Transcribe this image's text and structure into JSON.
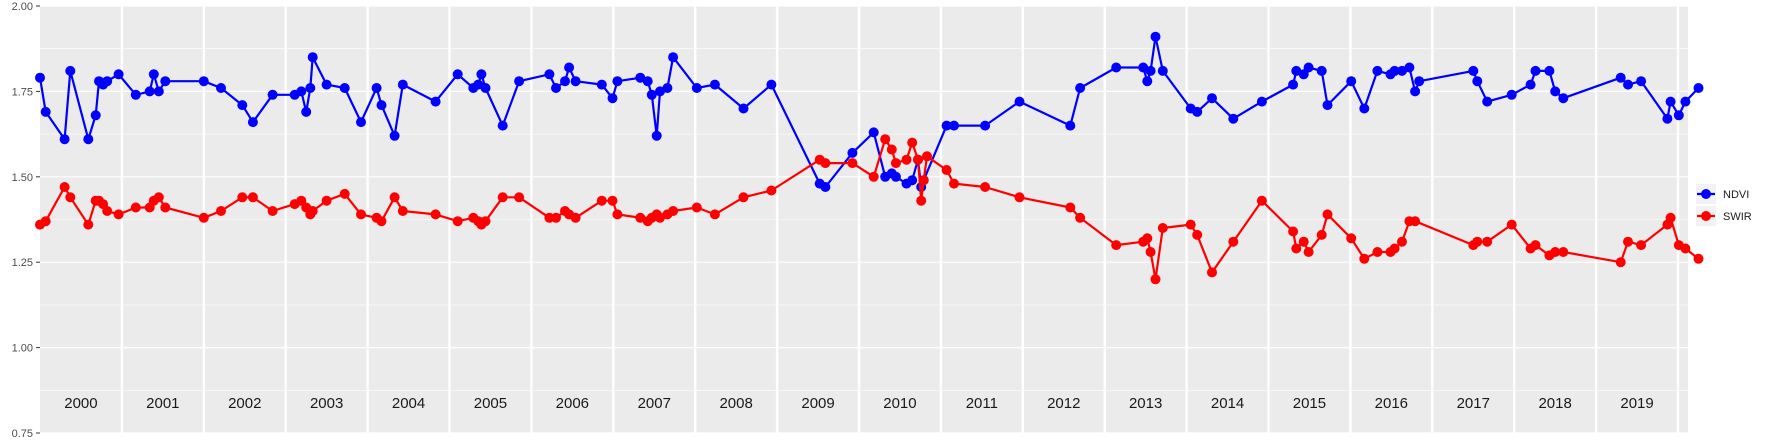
{
  "chart_data": {
    "type": "line",
    "title": "",
    "xlabel": "",
    "ylabel": "",
    "ylim": [
      0.75,
      2.0
    ],
    "y_ticks": [
      "0.75",
      "1.00",
      "1.25",
      "1.50",
      "1.75",
      "2.00"
    ],
    "x_range": [
      2000.0,
      2020.0
    ],
    "year_labels": [
      "2000",
      "2001",
      "2002",
      "2003",
      "2004",
      "2005",
      "2006",
      "2007",
      "2008",
      "2009",
      "2010",
      "2011",
      "2012",
      "2013",
      "2014",
      "2015",
      "2016",
      "2017",
      "2018",
      "2019"
    ],
    "grid": true,
    "legend": "right",
    "series": [
      {
        "name": "NDVI",
        "color": "#0000ff",
        "points": [
          [
            2000.0,
            1.79
          ],
          [
            2000.07,
            1.69
          ],
          [
            2000.3,
            1.61
          ],
          [
            2000.37,
            1.81
          ],
          [
            2000.59,
            1.61
          ],
          [
            2000.68,
            1.68
          ],
          [
            2000.72,
            1.78
          ],
          [
            2000.77,
            1.77
          ],
          [
            2000.82,
            1.78
          ],
          [
            2000.96,
            1.8
          ],
          [
            2001.17,
            1.74
          ],
          [
            2001.34,
            1.75
          ],
          [
            2001.39,
            1.8
          ],
          [
            2001.45,
            1.75
          ],
          [
            2001.53,
            1.78
          ],
          [
            2002.0,
            1.78
          ],
          [
            2002.21,
            1.76
          ],
          [
            2002.47,
            1.71
          ],
          [
            2002.6,
            1.66
          ],
          [
            2002.84,
            1.74
          ],
          [
            2003.11,
            1.74
          ],
          [
            2003.19,
            1.75
          ],
          [
            2003.25,
            1.69
          ],
          [
            2003.3,
            1.76
          ],
          [
            2003.33,
            1.85
          ],
          [
            2003.5,
            1.77
          ],
          [
            2003.72,
            1.76
          ],
          [
            2003.92,
            1.66
          ],
          [
            2004.11,
            1.76
          ],
          [
            2004.17,
            1.71
          ],
          [
            2004.33,
            1.62
          ],
          [
            2004.43,
            1.77
          ],
          [
            2004.83,
            1.72
          ],
          [
            2005.1,
            1.8
          ],
          [
            2005.29,
            1.76
          ],
          [
            2005.35,
            1.77
          ],
          [
            2005.39,
            1.8
          ],
          [
            2005.44,
            1.76
          ],
          [
            2005.65,
            1.65
          ],
          [
            2005.85,
            1.78
          ],
          [
            2006.22,
            1.8
          ],
          [
            2006.3,
            1.76
          ],
          [
            2006.41,
            1.78
          ],
          [
            2006.46,
            1.82
          ],
          [
            2006.54,
            1.78
          ],
          [
            2006.86,
            1.77
          ],
          [
            2006.99,
            1.73
          ],
          [
            2007.05,
            1.78
          ],
          [
            2007.33,
            1.79
          ],
          [
            2007.42,
            1.78
          ],
          [
            2007.47,
            1.74
          ],
          [
            2007.53,
            1.62
          ],
          [
            2007.57,
            1.75
          ],
          [
            2007.66,
            1.76
          ],
          [
            2007.73,
            1.85
          ],
          [
            2008.02,
            1.76
          ],
          [
            2008.24,
            1.77
          ],
          [
            2008.59,
            1.7
          ],
          [
            2008.93,
            1.77
          ],
          [
            2009.52,
            1.48
          ],
          [
            2009.59,
            1.47
          ],
          [
            2009.92,
            1.57
          ],
          [
            2010.18,
            1.63
          ],
          [
            2010.32,
            1.5
          ],
          [
            2010.4,
            1.51
          ],
          [
            2010.45,
            1.5
          ],
          [
            2010.58,
            1.48
          ],
          [
            2010.65,
            1.49
          ],
          [
            2010.72,
            1.55
          ],
          [
            2010.76,
            1.47
          ],
          [
            2010.79,
            1.49
          ],
          [
            2011.07,
            1.65
          ],
          [
            2011.16,
            1.65
          ],
          [
            2011.54,
            1.65
          ],
          [
            2011.96,
            1.72
          ],
          [
            2012.58,
            1.65
          ],
          [
            2012.7,
            1.76
          ],
          [
            2013.14,
            1.82
          ],
          [
            2013.47,
            1.82
          ],
          [
            2013.52,
            1.78
          ],
          [
            2013.56,
            1.81
          ],
          [
            2013.62,
            1.91
          ],
          [
            2013.71,
            1.81
          ],
          [
            2014.05,
            1.7
          ],
          [
            2014.13,
            1.69
          ],
          [
            2014.31,
            1.73
          ],
          [
            2014.57,
            1.67
          ],
          [
            2014.92,
            1.72
          ],
          [
            2015.3,
            1.77
          ],
          [
            2015.34,
            1.81
          ],
          [
            2015.43,
            1.8
          ],
          [
            2015.49,
            1.82
          ],
          [
            2015.65,
            1.81
          ],
          [
            2015.72,
            1.71
          ],
          [
            2016.01,
            1.78
          ],
          [
            2016.17,
            1.7
          ],
          [
            2016.33,
            1.81
          ],
          [
            2016.49,
            1.8
          ],
          [
            2016.54,
            1.81
          ],
          [
            2016.63,
            1.81
          ],
          [
            2016.72,
            1.82
          ],
          [
            2016.79,
            1.75
          ],
          [
            2016.84,
            1.78
          ],
          [
            2017.5,
            1.81
          ],
          [
            2017.55,
            1.78
          ],
          [
            2017.67,
            1.72
          ],
          [
            2017.97,
            1.74
          ],
          [
            2018.2,
            1.77
          ],
          [
            2018.26,
            1.81
          ],
          [
            2018.43,
            1.81
          ],
          [
            2018.5,
            1.75
          ],
          [
            2018.6,
            1.73
          ],
          [
            2019.3,
            1.79
          ],
          [
            2019.39,
            1.77
          ],
          [
            2019.55,
            1.78
          ],
          [
            2019.87,
            1.67
          ],
          [
            2019.91,
            1.72
          ],
          [
            2020.01,
            1.68
          ],
          [
            2020.09,
            1.72
          ],
          [
            2020.25,
            1.76
          ]
        ]
      },
      {
        "name": "SWIR",
        "color": "#ff0000",
        "points": [
          [
            2000.0,
            1.36
          ],
          [
            2000.07,
            1.37
          ],
          [
            2000.3,
            1.47
          ],
          [
            2000.37,
            1.44
          ],
          [
            2000.59,
            1.36
          ],
          [
            2000.68,
            1.43
          ],
          [
            2000.72,
            1.43
          ],
          [
            2000.77,
            1.42
          ],
          [
            2000.82,
            1.4
          ],
          [
            2000.96,
            1.39
          ],
          [
            2001.17,
            1.41
          ],
          [
            2001.34,
            1.41
          ],
          [
            2001.39,
            1.43
          ],
          [
            2001.45,
            1.44
          ],
          [
            2001.53,
            1.41
          ],
          [
            2002.0,
            1.38
          ],
          [
            2002.21,
            1.4
          ],
          [
            2002.47,
            1.44
          ],
          [
            2002.6,
            1.44
          ],
          [
            2002.84,
            1.4
          ],
          [
            2003.11,
            1.42
          ],
          [
            2003.19,
            1.43
          ],
          [
            2003.25,
            1.41
          ],
          [
            2003.3,
            1.39
          ],
          [
            2003.33,
            1.4
          ],
          [
            2003.5,
            1.43
          ],
          [
            2003.72,
            1.45
          ],
          [
            2003.92,
            1.39
          ],
          [
            2004.11,
            1.38
          ],
          [
            2004.17,
            1.37
          ],
          [
            2004.33,
            1.44
          ],
          [
            2004.43,
            1.4
          ],
          [
            2004.83,
            1.39
          ],
          [
            2005.1,
            1.37
          ],
          [
            2005.29,
            1.38
          ],
          [
            2005.35,
            1.37
          ],
          [
            2005.39,
            1.36
          ],
          [
            2005.44,
            1.37
          ],
          [
            2005.65,
            1.44
          ],
          [
            2005.85,
            1.44
          ],
          [
            2006.22,
            1.38
          ],
          [
            2006.3,
            1.38
          ],
          [
            2006.41,
            1.4
          ],
          [
            2006.46,
            1.39
          ],
          [
            2006.54,
            1.38
          ],
          [
            2006.86,
            1.43
          ],
          [
            2006.99,
            1.43
          ],
          [
            2007.05,
            1.39
          ],
          [
            2007.33,
            1.38
          ],
          [
            2007.42,
            1.37
          ],
          [
            2007.47,
            1.38
          ],
          [
            2007.53,
            1.39
          ],
          [
            2007.57,
            1.38
          ],
          [
            2007.66,
            1.39
          ],
          [
            2007.73,
            1.4
          ],
          [
            2008.02,
            1.41
          ],
          [
            2008.24,
            1.39
          ],
          [
            2008.59,
            1.44
          ],
          [
            2008.93,
            1.46
          ],
          [
            2009.52,
            1.55
          ],
          [
            2009.59,
            1.54
          ],
          [
            2009.92,
            1.54
          ],
          [
            2010.18,
            1.5
          ],
          [
            2010.32,
            1.61
          ],
          [
            2010.4,
            1.58
          ],
          [
            2010.45,
            1.54
          ],
          [
            2010.58,
            1.55
          ],
          [
            2010.65,
            1.6
          ],
          [
            2010.72,
            1.55
          ],
          [
            2010.76,
            1.43
          ],
          [
            2010.79,
            1.49
          ],
          [
            2010.83,
            1.56
          ],
          [
            2011.07,
            1.52
          ],
          [
            2011.16,
            1.48
          ],
          [
            2011.54,
            1.47
          ],
          [
            2011.96,
            1.44
          ],
          [
            2012.58,
            1.41
          ],
          [
            2012.7,
            1.38
          ],
          [
            2013.14,
            1.3
          ],
          [
            2013.47,
            1.31
          ],
          [
            2013.52,
            1.32
          ],
          [
            2013.56,
            1.28
          ],
          [
            2013.62,
            1.2
          ],
          [
            2013.71,
            1.35
          ],
          [
            2014.05,
            1.36
          ],
          [
            2014.13,
            1.33
          ],
          [
            2014.31,
            1.22
          ],
          [
            2014.57,
            1.31
          ],
          [
            2014.92,
            1.43
          ],
          [
            2015.3,
            1.34
          ],
          [
            2015.34,
            1.29
          ],
          [
            2015.43,
            1.31
          ],
          [
            2015.49,
            1.28
          ],
          [
            2015.65,
            1.33
          ],
          [
            2015.72,
            1.39
          ],
          [
            2016.01,
            1.32
          ],
          [
            2016.17,
            1.26
          ],
          [
            2016.33,
            1.28
          ],
          [
            2016.49,
            1.28
          ],
          [
            2016.54,
            1.29
          ],
          [
            2016.63,
            1.31
          ],
          [
            2016.72,
            1.37
          ],
          [
            2016.79,
            1.37
          ],
          [
            2017.5,
            1.3
          ],
          [
            2017.55,
            1.31
          ],
          [
            2017.67,
            1.31
          ],
          [
            2017.97,
            1.36
          ],
          [
            2018.2,
            1.29
          ],
          [
            2018.26,
            1.3
          ],
          [
            2018.43,
            1.27
          ],
          [
            2018.5,
            1.28
          ],
          [
            2018.6,
            1.28
          ],
          [
            2019.3,
            1.25
          ],
          [
            2019.39,
            1.31
          ],
          [
            2019.55,
            1.3
          ],
          [
            2019.87,
            1.36
          ],
          [
            2019.91,
            1.38
          ],
          [
            2020.01,
            1.3
          ],
          [
            2020.09,
            1.29
          ],
          [
            2020.25,
            1.26
          ]
        ]
      }
    ]
  }
}
